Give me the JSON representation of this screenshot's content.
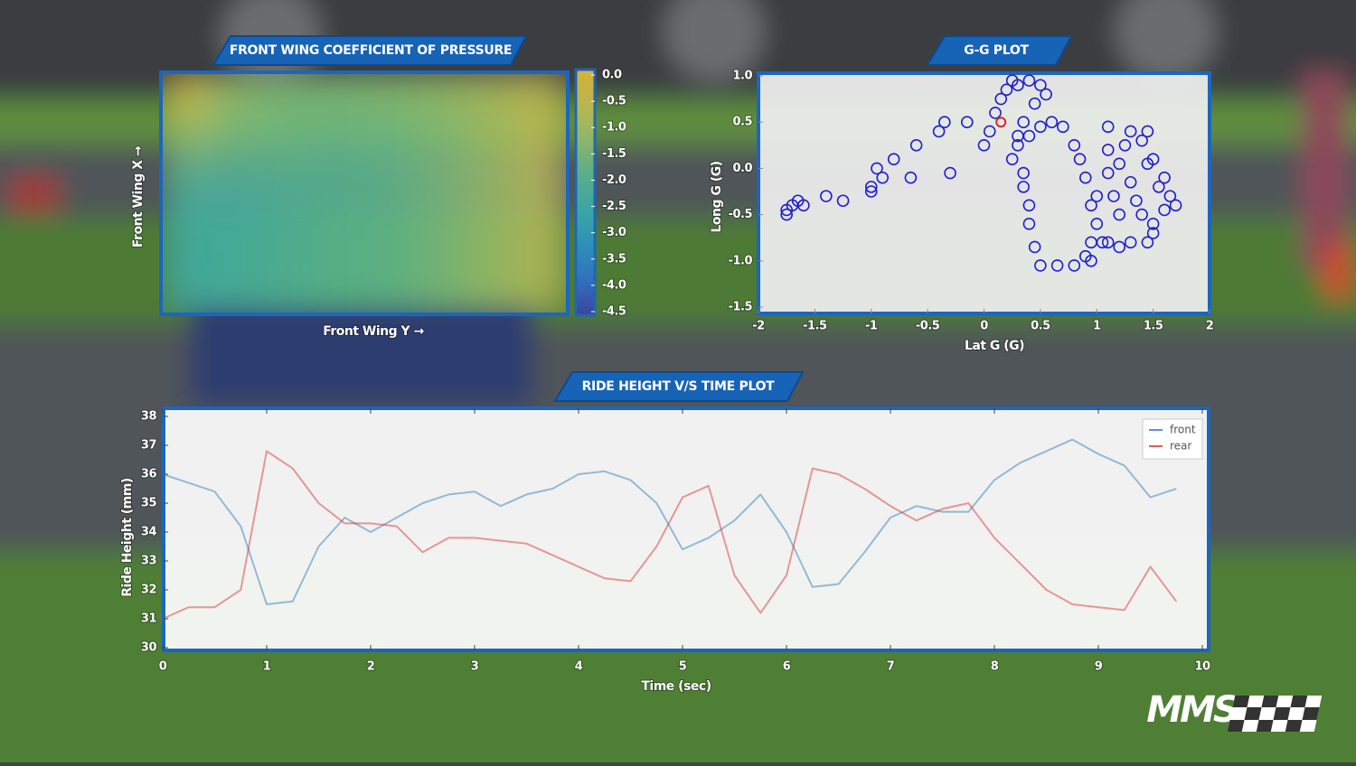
{
  "chart_data": [
    {
      "type": "contour",
      "title": "FRONT WING COEFFICIENT OF PRESSURE",
      "xlabel": "Front Wing Y →",
      "ylabel": "Front Wing X →",
      "z": [
        [
          -0.3,
          -1.3,
          -1.5,
          -1.5,
          -1.4,
          -1.2,
          -0.9,
          -0.6
        ],
        [
          -1.2,
          -1.6,
          -1.7,
          -1.8,
          -1.7,
          -1.5,
          -1.1,
          -0.7
        ],
        [
          -2.0,
          -2.1,
          -2.0,
          -2.0,
          -1.9,
          -1.6,
          -1.2,
          -0.8
        ],
        [
          -2.4,
          -2.4,
          -2.2,
          -2.0,
          -1.9,
          -1.6,
          -1.2,
          -0.8
        ],
        [
          -2.5,
          -2.4,
          -2.2,
          -2.0,
          -1.9,
          -1.6,
          -1.2,
          -0.8
        ],
        [
          -2.5,
          -2.4,
          -2.2,
          -2.0,
          -1.9,
          -1.6,
          -1.2,
          -0.8
        ]
      ],
      "clim": [
        -4.5,
        0
      ],
      "cticks": [
        {
          "value": 0,
          "label": "0.0"
        },
        -0.5,
        {
          "value": -1,
          "label": "-1.0"
        },
        -1.5,
        {
          "value": -2,
          "label": "-2.0"
        },
        -2.5,
        {
          "value": -3,
          "label": "-3.0"
        },
        -3.5,
        {
          "value": -4,
          "label": "-4.0"
        },
        -4.5
      ],
      "colormap": [
        "#3a3fa8",
        "#2f6fd0",
        "#2a93c9",
        "#3aaeae",
        "#5cb88f",
        "#92bd6d",
        "#c7bc52",
        "#e9bf3a"
      ]
    },
    {
      "type": "scatter",
      "title": "G-G PLOT",
      "xlabel": "Lat G (G)",
      "ylabel": "Long G (G)",
      "color": "#1f1fd0",
      "x": [
        -1.75,
        -1.7,
        -1.65,
        -1.6,
        -1.75,
        -1.4,
        -1.25,
        -1,
        -1,
        -0.9,
        -0.95,
        -0.8,
        -0.65,
        -0.6,
        -0.4,
        -0.35,
        -0.3,
        -0.15,
        0,
        0.05,
        0.1,
        0.15,
        0.2,
        0.25,
        0.3,
        0.4,
        0.5,
        0.55,
        0.45,
        0.35,
        0.3,
        0.25,
        0.35,
        0.35,
        0.4,
        0.4,
        0.45,
        0.5,
        0.65,
        0.8,
        0.9,
        0.95,
        1.0,
        0.95,
        1.0,
        0.9,
        0.85,
        0.8,
        0.7,
        0.6,
        0.5,
        0.4,
        0.3,
        1.1,
        1.1,
        1.2,
        1.3,
        1.35,
        1.4,
        1.5,
        1.6,
        1.65,
        1.7,
        1.55,
        1.45,
        1.4,
        1.45,
        1.3,
        1.2,
        1.1,
        1.3,
        1.45,
        1.5,
        1.2,
        1.15,
        1.05,
        0.95,
        1.5,
        1.6,
        1.25,
        1.1
      ],
      "y": [
        -0.45,
        -0.4,
        -0.35,
        -0.4,
        -0.5,
        -0.3,
        -0.35,
        -0.25,
        -0.2,
        -0.1,
        0,
        0.1,
        -0.1,
        0.25,
        0.4,
        0.5,
        -0.05,
        0.5,
        0.25,
        0.4,
        0.6,
        0.75,
        0.85,
        0.95,
        0.9,
        0.95,
        0.9,
        0.8,
        0.7,
        0.5,
        0.35,
        0.1,
        -0.05,
        -0.2,
        -0.4,
        -0.6,
        -0.85,
        -1.05,
        -1.05,
        -1.05,
        -0.95,
        -0.8,
        -0.6,
        -0.4,
        -0.3,
        -0.1,
        0.1,
        0.25,
        0.45,
        0.5,
        0.45,
        0.35,
        0.25,
        0.45,
        0.2,
        0.05,
        -0.15,
        -0.35,
        -0.5,
        -0.6,
        -0.45,
        -0.3,
        -0.4,
        -0.2,
        0.05,
        0.3,
        0.4,
        0.4,
        -0.85,
        -0.8,
        -0.8,
        -0.8,
        -0.7,
        -0.5,
        -0.3,
        -0.8,
        -1.0,
        0.1,
        -0.1,
        0.25,
        -0.05
      ],
      "current": {
        "x": 0.15,
        "y": 0.5,
        "color": "#d62728"
      },
      "xlim": [
        -2,
        2
      ],
      "xticks": [
        -2,
        -1.5,
        -1,
        -0.5,
        0,
        0.5,
        1,
        1.5,
        2
      ],
      "ylim": [
        -1.5,
        1
      ],
      "yticks": [
        {
          "value": 1,
          "label": "1.0"
        },
        0.5,
        {
          "value": 0,
          "label": "0.0"
        },
        -0.5,
        {
          "value": -1,
          "label": "-1.0"
        },
        -1.5
      ]
    },
    {
      "type": "line",
      "title": "RIDE HEIGHT V/S TIME PLOT",
      "xlabel": "Time (sec)",
      "ylabel": "Ride Height (mm)",
      "x": [
        0,
        0.25,
        0.5,
        0.75,
        1,
        1.25,
        1.5,
        1.75,
        2,
        2.25,
        2.5,
        2.75,
        3,
        3.25,
        3.5,
        3.75,
        4,
        4.25,
        4.5,
        4.75,
        5,
        5.25,
        5.5,
        5.75,
        6,
        6.25,
        6.5,
        6.75,
        7,
        7.25,
        7.5,
        7.75,
        8,
        8.25,
        8.5,
        8.75,
        9,
        9.25,
        9.5,
        9.75
      ],
      "series": [
        {
          "name": "front",
          "color": "#1f77b4",
          "values": [
            36,
            35.7,
            35.4,
            34.2,
            31.5,
            31.6,
            33.5,
            34.5,
            34,
            34.5,
            35,
            35.3,
            35.4,
            34.9,
            35.3,
            35.5,
            36,
            36.1,
            35.8,
            35,
            33.4,
            33.8,
            34.4,
            35.3,
            34,
            32.1,
            32.2,
            33.3,
            34.5,
            34.9,
            34.7,
            34.7,
            35.8,
            36.4,
            36.8,
            37.2,
            36.7,
            36.3,
            35.2,
            35.5
          ]
        },
        {
          "name": "rear",
          "color": "#d62728",
          "values": [
            31,
            31.4,
            31.4,
            32,
            36.8,
            36.2,
            35,
            34.3,
            34.3,
            34.2,
            33.3,
            33.8,
            33.8,
            33.7,
            33.6,
            33.2,
            32.8,
            32.4,
            32.3,
            33.5,
            35.2,
            35.6,
            32.5,
            31.2,
            32.5,
            36.2,
            36,
            35.5,
            34.9,
            34.4,
            34.8,
            35,
            33.8,
            32.9,
            32,
            31.5,
            31.4,
            31.3,
            32.8,
            31.6
          ]
        }
      ],
      "xlim": [
        0,
        10
      ],
      "xticks": [
        0,
        1,
        2,
        3,
        4,
        5,
        6,
        7,
        8,
        9,
        10
      ],
      "ylim": [
        30,
        38
      ],
      "yticks": [
        30,
        31,
        32,
        33,
        34,
        35,
        36,
        37,
        38
      ],
      "legend": "upper right"
    }
  ],
  "logo": "MMS"
}
